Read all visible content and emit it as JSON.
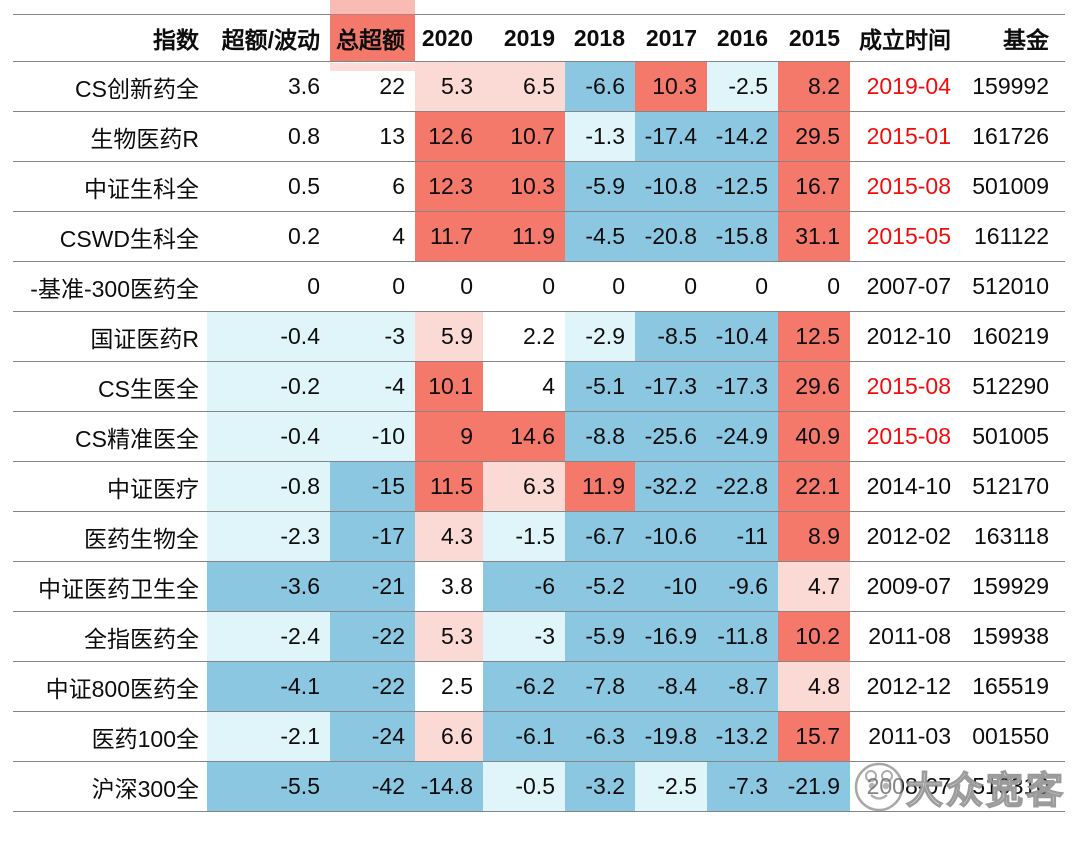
{
  "chart_data": {
    "type": "table",
    "subtype": "heatmap-table",
    "columns": [
      "指数",
      "超额/波动",
      "总超额",
      "2020",
      "2019",
      "2018",
      "2017",
      "2016",
      "2015",
      "成立时间",
      "基金"
    ],
    "highlighted_column": "总超额",
    "rows": [
      {
        "name": "CS创新药全",
        "values": [
          "3.6",
          "22",
          "5.3",
          "6.5",
          "-6.6",
          "10.3",
          "-2.5",
          "8.2"
        ],
        "cell_colors": [
          "white",
          "white",
          "pink",
          "pink",
          "blue",
          "salmon",
          "cyan",
          "salmon"
        ],
        "inception": "2019-04",
        "inception_red": true,
        "fund": "159992"
      },
      {
        "name": "生物医药R",
        "values": [
          "0.8",
          "13",
          "12.6",
          "10.7",
          "-1.3",
          "-17.4",
          "-14.2",
          "29.5"
        ],
        "cell_colors": [
          "white",
          "white",
          "salmon",
          "salmon",
          "cyan",
          "blue",
          "blue",
          "salmon"
        ],
        "inception": "2015-01",
        "inception_red": true,
        "fund": "161726"
      },
      {
        "name": "中证生科全",
        "values": [
          "0.5",
          "6",
          "12.3",
          "10.3",
          "-5.9",
          "-10.8",
          "-12.5",
          "16.7"
        ],
        "cell_colors": [
          "white",
          "white",
          "salmon",
          "salmon",
          "blue",
          "blue",
          "blue",
          "salmon"
        ],
        "inception": "2015-08",
        "inception_red": true,
        "fund": "501009"
      },
      {
        "name": "CSWD生科全",
        "values": [
          "0.2",
          "4",
          "11.7",
          "11.9",
          "-4.5",
          "-20.8",
          "-15.8",
          "31.1"
        ],
        "cell_colors": [
          "white",
          "white",
          "salmon",
          "salmon",
          "blue",
          "blue",
          "blue",
          "salmon"
        ],
        "inception": "2015-05",
        "inception_red": true,
        "fund": "161122"
      },
      {
        "name": "-基准-300医药全",
        "values": [
          "0",
          "0",
          "0",
          "0",
          "0",
          "0",
          "0",
          "0"
        ],
        "cell_colors": [
          "white",
          "white",
          "white",
          "white",
          "white",
          "white",
          "white",
          "white"
        ],
        "inception": "2007-07",
        "inception_red": false,
        "fund": "512010"
      },
      {
        "name": "国证医药R",
        "values": [
          "-0.4",
          "-3",
          "5.9",
          "2.2",
          "-2.9",
          "-8.5",
          "-10.4",
          "12.5"
        ],
        "cell_colors": [
          "cyan",
          "cyan",
          "pink",
          "white",
          "cyan",
          "blue",
          "blue",
          "salmon"
        ],
        "inception": "2012-10",
        "inception_red": false,
        "fund": "160219"
      },
      {
        "name": "CS生医全",
        "values": [
          "-0.2",
          "-4",
          "10.1",
          "4",
          "-5.1",
          "-17.3",
          "-17.3",
          "29.6"
        ],
        "cell_colors": [
          "cyan",
          "cyan",
          "salmon",
          "white",
          "blue",
          "blue",
          "blue",
          "salmon"
        ],
        "inception": "2015-08",
        "inception_red": true,
        "fund": "512290"
      },
      {
        "name": "CS精准医全",
        "values": [
          "-0.4",
          "-10",
          "9",
          "14.6",
          "-8.8",
          "-25.6",
          "-24.9",
          "40.9"
        ],
        "cell_colors": [
          "cyan",
          "cyan",
          "salmon",
          "salmon",
          "blue",
          "blue",
          "blue",
          "salmon"
        ],
        "inception": "2015-08",
        "inception_red": true,
        "fund": "501005"
      },
      {
        "name": "中证医疗",
        "values": [
          "-0.8",
          "-15",
          "11.5",
          "6.3",
          "11.9",
          "-32.2",
          "-22.8",
          "22.1"
        ],
        "cell_colors": [
          "cyan",
          "blue",
          "salmon",
          "pink",
          "salmon",
          "blue",
          "blue",
          "salmon"
        ],
        "inception": "2014-10",
        "inception_red": false,
        "fund": "512170"
      },
      {
        "name": "医药生物全",
        "values": [
          "-2.3",
          "-17",
          "4.3",
          "-1.5",
          "-6.7",
          "-10.6",
          "-11",
          "8.9"
        ],
        "cell_colors": [
          "cyan",
          "blue",
          "pink",
          "cyan",
          "blue",
          "blue",
          "blue",
          "salmon"
        ],
        "inception": "2012-02",
        "inception_red": false,
        "fund": "163118"
      },
      {
        "name": "中证医药卫生全",
        "values": [
          "-3.6",
          "-21",
          "3.8",
          "-6",
          "-5.2",
          "-10",
          "-9.6",
          "4.7"
        ],
        "cell_colors": [
          "blue",
          "blue",
          "white",
          "blue",
          "blue",
          "blue",
          "blue",
          "pink"
        ],
        "inception": "2009-07",
        "inception_red": false,
        "fund": "159929"
      },
      {
        "name": "全指医药全",
        "values": [
          "-2.4",
          "-22",
          "5.3",
          "-3",
          "-5.9",
          "-16.9",
          "-11.8",
          "10.2"
        ],
        "cell_colors": [
          "cyan",
          "blue",
          "pink",
          "cyan",
          "blue",
          "blue",
          "blue",
          "salmon"
        ],
        "inception": "2011-08",
        "inception_red": false,
        "fund": "159938"
      },
      {
        "name": "中证800医药全",
        "values": [
          "-4.1",
          "-22",
          "2.5",
          "-6.2",
          "-7.8",
          "-8.4",
          "-8.7",
          "4.8"
        ],
        "cell_colors": [
          "blue",
          "blue",
          "white",
          "blue",
          "blue",
          "blue",
          "blue",
          "pink"
        ],
        "inception": "2012-12",
        "inception_red": false,
        "fund": "165519"
      },
      {
        "name": "医药100全",
        "values": [
          "-2.1",
          "-24",
          "6.6",
          "-6.1",
          "-6.3",
          "-19.8",
          "-13.2",
          "15.7"
        ],
        "cell_colors": [
          "cyan",
          "blue",
          "pink",
          "blue",
          "blue",
          "blue",
          "blue",
          "salmon"
        ],
        "inception": "2011-03",
        "inception_red": false,
        "fund": "001550"
      },
      {
        "name": "沪深300全",
        "values": [
          "-5.5",
          "-42",
          "-14.8",
          "-0.5",
          "-3.2",
          "-2.5",
          "-7.3",
          "-21.9"
        ],
        "cell_colors": [
          "blue",
          "blue",
          "blue",
          "cyan",
          "blue",
          "cyan",
          "blue",
          "blue"
        ],
        "inception": "2008-07",
        "inception_red": false,
        "fund": "510310"
      }
    ],
    "palette": {
      "salmon": "#f4796b",
      "pink": "#fbd9d4",
      "blue": "#8cc7e2",
      "cyan": "#dff5f9",
      "red_text": "#f20d0d",
      "grid_line": "#858585"
    }
  },
  "watermark": {
    "text": "大众宽客"
  }
}
